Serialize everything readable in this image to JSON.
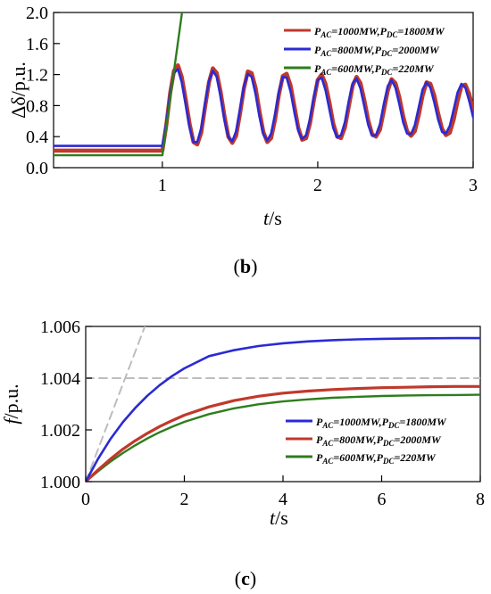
{
  "chart_data": [
    {
      "type": "line",
      "panel_label": "(b)",
      "panel_letter": "b",
      "xlabel_italic": "t",
      "xlabel_unit": "/s",
      "ylabel": "Δδ/p.u.",
      "xlim": [
        0.3,
        3.0
      ],
      "ylim": [
        0.0,
        2.0
      ],
      "xticks": [
        1,
        2,
        3
      ],
      "yticks": [
        0.0,
        0.4,
        0.8,
        1.2,
        1.6,
        2.0
      ],
      "ytick_labels": [
        "0.0",
        "0.4",
        "0.8",
        "1.2",
        "1.6",
        "2.0"
      ],
      "grid": false,
      "legend_position": "top-right",
      "series": [
        {
          "name": "PAC=1000MW,PDC=1800MW",
          "legend": {
            "p1": "P",
            "s1": "AC",
            "m": "=1000MW,",
            "p2": "P",
            "s2": "DC",
            "e": "=1800MW"
          },
          "color": "#c0392b",
          "x": [
            0.3,
            1.0,
            1.025,
            1.05,
            1.075,
            1.1,
            1.125,
            1.15,
            1.175,
            1.2,
            1.225,
            1.25,
            1.275,
            1.3,
            1.325,
            1.35,
            1.375,
            1.4,
            1.425,
            1.45,
            1.475,
            1.5,
            1.525,
            1.55,
            1.575,
            1.6,
            1.625,
            1.65,
            1.675,
            1.7,
            1.725,
            1.75,
            1.775,
            1.8,
            1.825,
            1.85,
            1.875,
            1.9,
            1.925,
            1.95,
            1.975,
            2.0,
            2.025,
            2.05,
            2.075,
            2.1,
            2.125,
            2.15,
            2.175,
            2.2,
            2.225,
            2.25,
            2.275,
            2.3,
            2.325,
            2.35,
            2.375,
            2.4,
            2.425,
            2.45,
            2.475,
            2.5,
            2.525,
            2.55,
            2.575,
            2.6,
            2.625,
            2.65,
            2.675,
            2.7,
            2.725,
            2.75,
            2.775,
            2.8,
            2.825,
            2.85,
            2.875,
            2.9,
            2.925,
            2.95,
            2.975,
            3.0
          ],
          "y": [
            0.22,
            0.22,
            0.54,
            0.96,
            1.25,
            1.32,
            1.17,
            0.88,
            0.57,
            0.33,
            0.3,
            0.45,
            0.78,
            1.1,
            1.28,
            1.22,
            0.98,
            0.66,
            0.4,
            0.32,
            0.41,
            0.7,
            1.02,
            1.24,
            1.22,
            1.03,
            0.73,
            0.46,
            0.33,
            0.38,
            0.62,
            0.94,
            1.18,
            1.21,
            1.06,
            0.79,
            0.51,
            0.36,
            0.38,
            0.57,
            0.87,
            1.13,
            1.2,
            1.08,
            0.84,
            0.57,
            0.4,
            0.38,
            0.52,
            0.79,
            1.06,
            1.17,
            1.09,
            0.87,
            0.61,
            0.43,
            0.4,
            0.49,
            0.73,
            0.99,
            1.14,
            1.09,
            0.91,
            0.66,
            0.47,
            0.41,
            0.47,
            0.68,
            0.93,
            1.1,
            1.08,
            0.93,
            0.7,
            0.5,
            0.42,
            0.45,
            0.62,
            0.86,
            1.05,
            1.07,
            0.95,
            0.74
          ]
        },
        {
          "name": "PAC=800MW,PDC=2000MW",
          "legend": {
            "p1": "P",
            "s1": "AC",
            "m": "=800MW,",
            "p2": "P",
            "s2": "DC",
            "e": "=2000MW"
          },
          "color": "#2a2ad6",
          "x": [
            0.3,
            1.0,
            1.025,
            1.05,
            1.075,
            1.1,
            1.125,
            1.15,
            1.175,
            1.2,
            1.225,
            1.25,
            1.275,
            1.3,
            1.325,
            1.35,
            1.375,
            1.4,
            1.425,
            1.45,
            1.475,
            1.5,
            1.525,
            1.55,
            1.575,
            1.6,
            1.625,
            1.65,
            1.675,
            1.7,
            1.725,
            1.75,
            1.775,
            1.8,
            1.825,
            1.85,
            1.875,
            1.9,
            1.925,
            1.95,
            1.975,
            2.0,
            2.025,
            2.05,
            2.075,
            2.1,
            2.125,
            2.15,
            2.175,
            2.2,
            2.225,
            2.25,
            2.275,
            2.3,
            2.325,
            2.35,
            2.375,
            2.4,
            2.425,
            2.45,
            2.475,
            2.5,
            2.525,
            2.55,
            2.575,
            2.6,
            2.625,
            2.65,
            2.675,
            2.7,
            2.725,
            2.75,
            2.775,
            2.8,
            2.825,
            2.85,
            2.875,
            2.9,
            2.925,
            2.95,
            2.975,
            3.0
          ],
          "y": [
            0.28,
            0.28,
            0.57,
            0.96,
            1.22,
            1.27,
            1.1,
            0.81,
            0.52,
            0.33,
            0.33,
            0.51,
            0.83,
            1.12,
            1.25,
            1.17,
            0.91,
            0.61,
            0.39,
            0.34,
            0.47,
            0.76,
            1.05,
            1.21,
            1.17,
            0.95,
            0.66,
            0.43,
            0.35,
            0.44,
            0.69,
            0.98,
            1.17,
            1.16,
            0.98,
            0.71,
            0.47,
            0.37,
            0.42,
            0.63,
            0.92,
            1.13,
            1.16,
            1.0,
            0.75,
            0.51,
            0.39,
            0.42,
            0.59,
            0.86,
            1.09,
            1.15,
            1.02,
            0.79,
            0.55,
            0.41,
            0.42,
            0.56,
            0.82,
            1.05,
            1.13,
            1.03,
            0.82,
            0.58,
            0.44,
            0.43,
            0.55,
            0.78,
            1.01,
            1.1,
            1.03,
            0.84,
            0.62,
            0.46,
            0.44,
            0.54,
            0.75,
            0.97,
            1.08,
            1.03,
            0.86,
            0.65
          ]
        },
        {
          "name": "PAC=600MW,PDC=220MW",
          "legend": {
            "p1": "P",
            "s1": "AC",
            "m": "=600MW,",
            "p2": "P",
            "s2": "DC",
            "e": "=220MW"
          },
          "color": "#2e7d1e",
          "x": [
            0.3,
            1.0,
            1.13
          ],
          "y": [
            0.16,
            0.16,
            2.05
          ]
        }
      ]
    },
    {
      "type": "line",
      "panel_label": "(c)",
      "panel_letter": "c",
      "xlabel_italic": "f",
      "xlabel_unit": "/p.u.",
      "xlabel_t": "t",
      "xlabel_t_unit": "/s",
      "xlim": [
        0,
        8
      ],
      "ylim": [
        1.0,
        1.006
      ],
      "xticks": [
        0,
        2,
        4,
        6,
        8
      ],
      "yticks": [
        1.0,
        1.002,
        1.004,
        1.006
      ],
      "ytick_labels": [
        "1.000",
        "1.002",
        "1.004",
        "1.006"
      ],
      "grid": false,
      "legend_position": "bottom-right",
      "series": [
        {
          "name": "PAC=1000MW,PDC=1800MW",
          "legend": {
            "p1": "P",
            "s1": "AC",
            "m": "=1000MW,",
            "p2": "P",
            "s2": "DC",
            "e": "=1800MW"
          },
          "color": "#2a2ad6",
          "x": [
            0,
            0.25,
            0.5,
            0.75,
            1,
            1.25,
            1.5,
            1.75,
            2,
            2.5,
            3,
            3.5,
            4,
            4.5,
            5,
            5.5,
            6,
            6.5,
            7,
            7.5,
            8
          ],
          "y": [
            1.0,
            1.00088,
            1.00164,
            1.00229,
            1.00284,
            1.00332,
            1.00373,
            1.00408,
            1.00438,
            1.00485,
            1.00508,
            1.00524,
            1.00535,
            1.00542,
            1.00547,
            1.0055,
            1.00552,
            1.00553,
            1.00554,
            1.00555,
            1.00555
          ]
        },
        {
          "name": "PAC=800MW,PDC=2000MW",
          "legend": {
            "p1": "P",
            "s1": "AC",
            "m": "=800MW,",
            "p2": "P",
            "s2": "DC",
            "e": "=2000MW"
          },
          "color": "#c0392b",
          "x": [
            0,
            0.25,
            0.5,
            0.75,
            1,
            1.25,
            1.5,
            1.75,
            2,
            2.5,
            3,
            3.5,
            4,
            4.5,
            5,
            5.5,
            6,
            6.5,
            7,
            7.5,
            8
          ],
          "y": [
            1.0,
            1.00045,
            1.00087,
            1.00125,
            1.00158,
            1.00187,
            1.00213,
            1.00236,
            1.00257,
            1.00289,
            1.00313,
            1.0033,
            1.00342,
            1.0035,
            1.00356,
            1.0036,
            1.00363,
            1.00365,
            1.00367,
            1.00368,
            1.00368
          ]
        },
        {
          "name": "PAC=600MW,PDC=220MW",
          "legend": {
            "p1": "P",
            "s1": "AC",
            "m": "=600MW,",
            "p2": "P",
            "s2": "DC",
            "e": "=220MW"
          },
          "color": "#2e7d1e",
          "x": [
            0,
            0.25,
            0.5,
            0.75,
            1,
            1.25,
            1.5,
            1.75,
            2,
            2.5,
            3,
            3.5,
            4,
            4.5,
            5,
            5.5,
            6,
            6.5,
            7,
            7.5,
            8
          ],
          "y": [
            1.0,
            1.0004,
            1.00077,
            1.0011,
            1.0014,
            1.00167,
            1.00191,
            1.00212,
            1.00231,
            1.00261,
            1.00283,
            1.00299,
            1.0031,
            1.00318,
            1.00324,
            1.00328,
            1.00331,
            1.00333,
            1.00334,
            1.00335,
            1.00336
          ]
        },
        {
          "name": "reference-tangent",
          "color": "#bdbdbd",
          "dashed": true,
          "x": [
            0,
            1.2
          ],
          "y": [
            1.0,
            1.006
          ]
        },
        {
          "name": "reference-level",
          "color": "#bdbdbd",
          "dashed": true,
          "x": [
            0,
            8
          ],
          "y": [
            1.004,
            1.004
          ]
        }
      ]
    }
  ]
}
